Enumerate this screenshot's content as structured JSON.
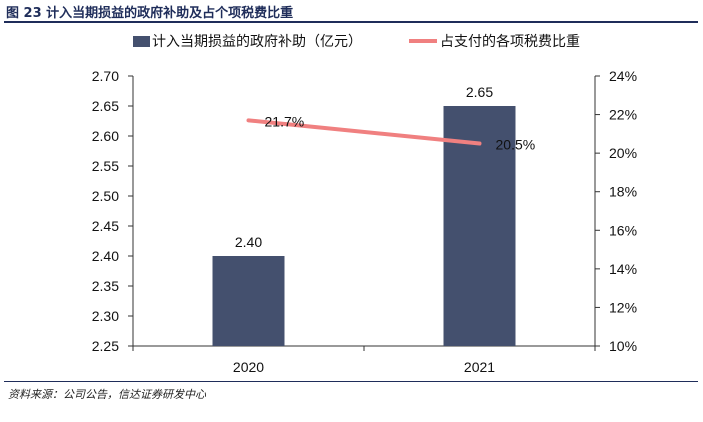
{
  "figure": {
    "title": "图 23  计入当期损益的政府补助及占个项税费比重",
    "source": "资料来源：公司公告，信达证券研发中心"
  },
  "chart_data": {
    "type": "bar",
    "categories": [
      "2020",
      "2021"
    ],
    "series": [
      {
        "name": "计入当期损益的政府补助（亿元）",
        "type": "bar",
        "axis": "left",
        "values": [
          2.4,
          2.65
        ],
        "labels": [
          "2.40",
          "2.65"
        ],
        "color": "#44506e"
      },
      {
        "name": "占支付的各项税费比重",
        "type": "line",
        "axis": "right",
        "values": [
          21.7,
          20.5
        ],
        "labels": [
          "21.7%",
          "20.5%"
        ],
        "color": "#f08080"
      }
    ],
    "y_left": {
      "min": 2.25,
      "max": 2.7,
      "ticks": [
        "2.25",
        "2.30",
        "2.35",
        "2.40",
        "2.45",
        "2.50",
        "2.55",
        "2.60",
        "2.65",
        "2.70"
      ]
    },
    "y_right": {
      "min": 10,
      "max": 24,
      "ticks": [
        "10%",
        "12%",
        "14%",
        "16%",
        "18%",
        "20%",
        "22%",
        "24%"
      ]
    },
    "legend_position": "top",
    "grid": false
  }
}
